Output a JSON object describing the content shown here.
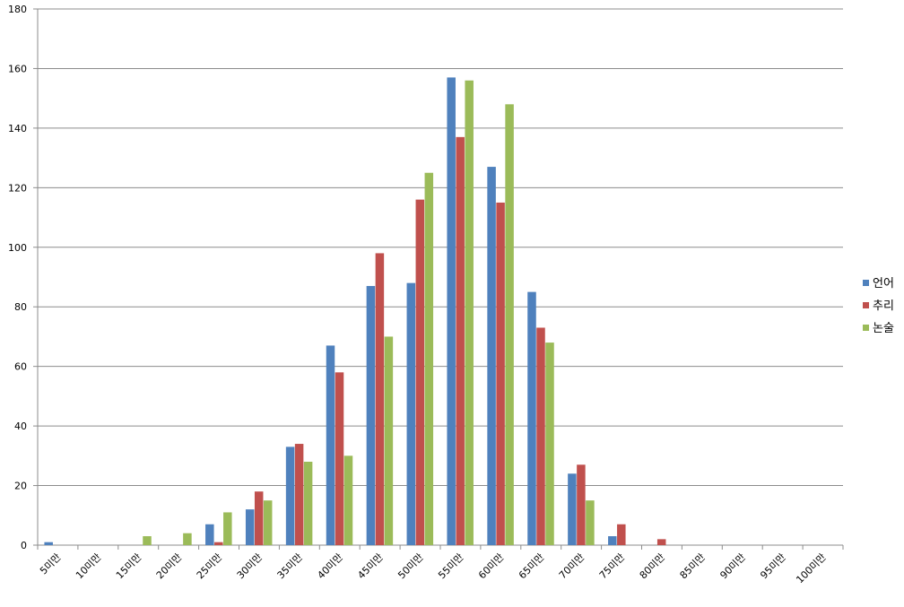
{
  "chart_data": {
    "type": "bar",
    "categories": [
      "5미만",
      "10미만",
      "15미만",
      "20미만",
      "25미만",
      "30미만",
      "35미만",
      "40미만",
      "45미만",
      "50미만",
      "55미만",
      "60미만",
      "65미만",
      "70미만",
      "75미만",
      "80미만",
      "85미만",
      "90미만",
      "95미만",
      "100미만"
    ],
    "series": [
      {
        "name": "언어",
        "color": "#4f81bd",
        "values": [
          1,
          0,
          0,
          0,
          7,
          12,
          33,
          67,
          87,
          88,
          157,
          127,
          85,
          24,
          3,
          0,
          0,
          0,
          0,
          0
        ]
      },
      {
        "name": "추리",
        "color": "#c0504d",
        "values": [
          0,
          0,
          0,
          0,
          1,
          18,
          34,
          58,
          98,
          116,
          137,
          115,
          73,
          27,
          7,
          2,
          0,
          0,
          0,
          0
        ]
      },
      {
        "name": "논술",
        "color": "#9bbb59",
        "values": [
          0,
          0,
          3,
          4,
          11,
          15,
          28,
          30,
          70,
          125,
          156,
          148,
          68,
          15,
          0,
          0,
          0,
          0,
          0,
          0
        ]
      }
    ],
    "ylim": [
      0,
      180
    ],
    "yticks": [
      0,
      20,
      40,
      60,
      80,
      100,
      120,
      140,
      160,
      180
    ],
    "grid": true,
    "legend": "right"
  }
}
